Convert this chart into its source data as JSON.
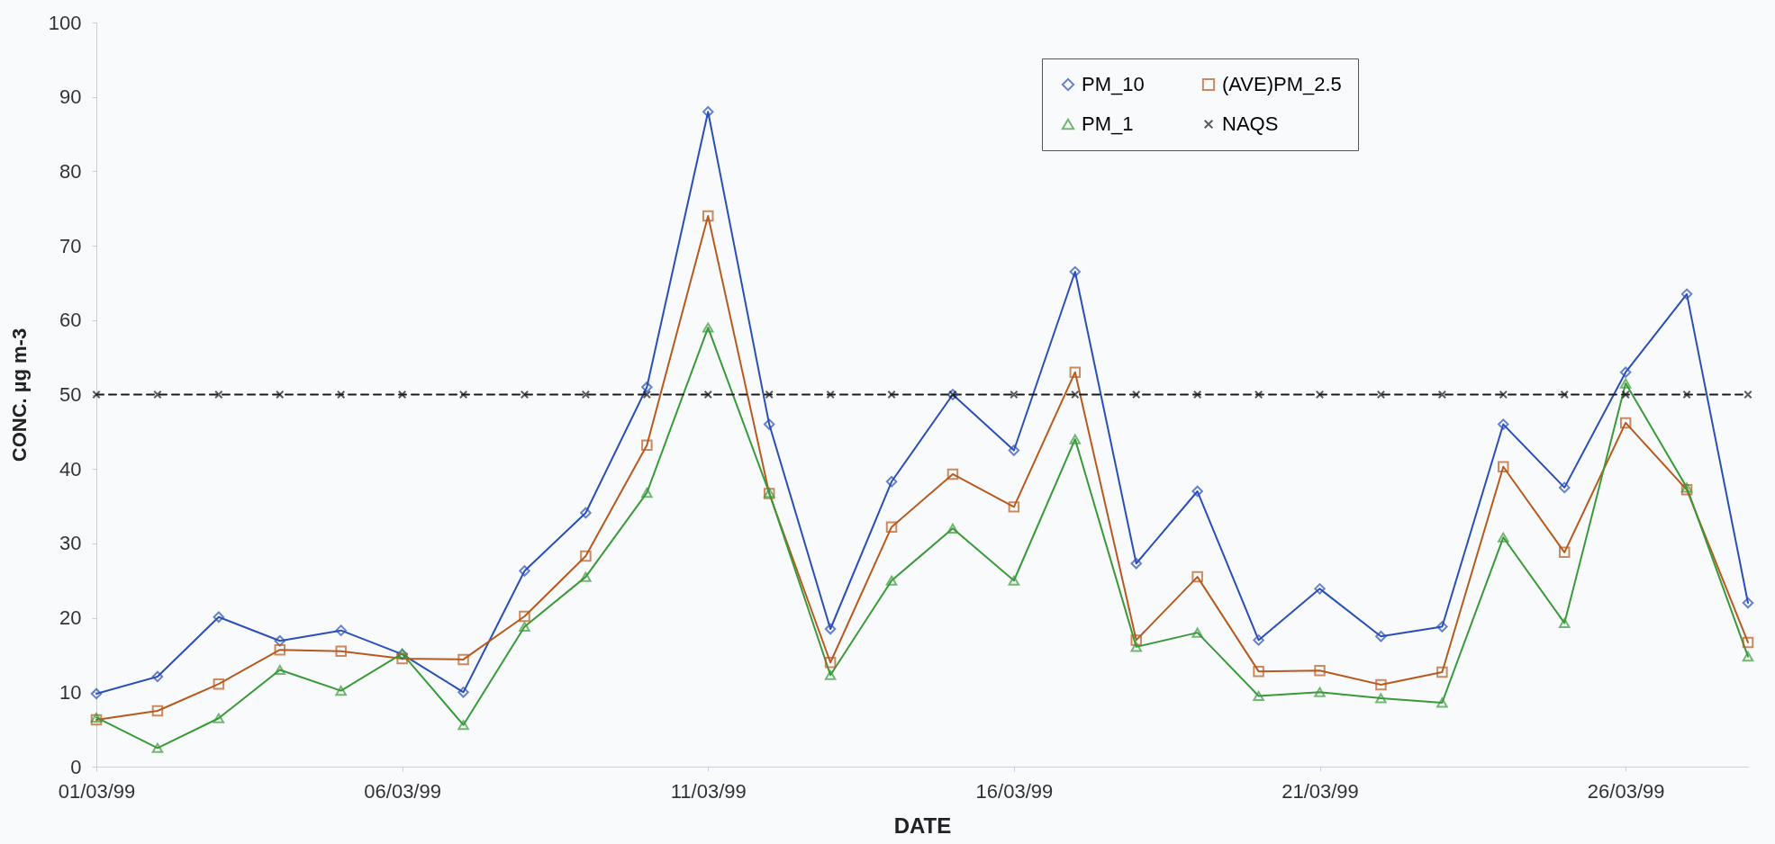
{
  "chart_data": {
    "type": "line",
    "xlabel": "DATE",
    "ylabel": "CONC. µg m-3",
    "categories": [
      "01/03/99",
      null,
      null,
      null,
      null,
      "06/03/99",
      null,
      null,
      null,
      null,
      "11/03/99",
      null,
      null,
      null,
      null,
      "16/03/99",
      null,
      null,
      null,
      null,
      "21/03/99",
      null,
      null,
      null,
      null,
      "26/03/99",
      null,
      null
    ],
    "series": [
      {
        "name": "PM_10",
        "color": "#2b4fb8",
        "marker": "diamond",
        "values": [
          9.8,
          12.1,
          20.1,
          16.9,
          18.3,
          15.1,
          10,
          26.3,
          34.1,
          51,
          88,
          46,
          18.5,
          38.3,
          50,
          42.5,
          66.5,
          27.3,
          37,
          17,
          23.9,
          17.5,
          18.8,
          46,
          37.5,
          53,
          63.5,
          22
        ]
      },
      {
        "name": "(AVE)PM_2.5",
        "color": "#b85a1e",
        "marker": "square",
        "values": [
          6.3,
          7.5,
          11.1,
          15.7,
          15.5,
          14.5,
          14.4,
          20.2,
          28.3,
          43.2,
          74,
          36.7,
          14,
          32.2,
          39.3,
          34.9,
          53,
          17,
          25.5,
          12.8,
          12.9,
          11,
          12.7,
          40.3,
          28.8,
          46.2,
          37.2,
          16.7
        ]
      },
      {
        "name": "PM_1",
        "color": "#3a9a3a",
        "marker": "triangle",
        "values": [
          6.6,
          2.5,
          6.5,
          13,
          10.2,
          15.2,
          5.6,
          18.8,
          25.5,
          36.8,
          59,
          36.8,
          12.3,
          25,
          32,
          25,
          44,
          16.1,
          18,
          9.5,
          10,
          9.2,
          8.6,
          30.8,
          19.3,
          51.5,
          37.5,
          14.8
        ]
      },
      {
        "name": "NAQS",
        "color": "#1a1a1a",
        "marker": "cross",
        "line_style": "dashed",
        "values": [
          50,
          50,
          50,
          50,
          50,
          50,
          50,
          50,
          50,
          50,
          50,
          50,
          50,
          50,
          50,
          50,
          50,
          50,
          50,
          50,
          50,
          50,
          50,
          50,
          50,
          50,
          50,
          50
        ]
      }
    ],
    "ylim": [
      0,
      100
    ],
    "yticks": [
      0,
      10,
      20,
      30,
      40,
      50,
      60,
      70,
      80,
      90,
      100
    ],
    "grid": false,
    "legend": "top right",
    "line_style": "solid"
  }
}
